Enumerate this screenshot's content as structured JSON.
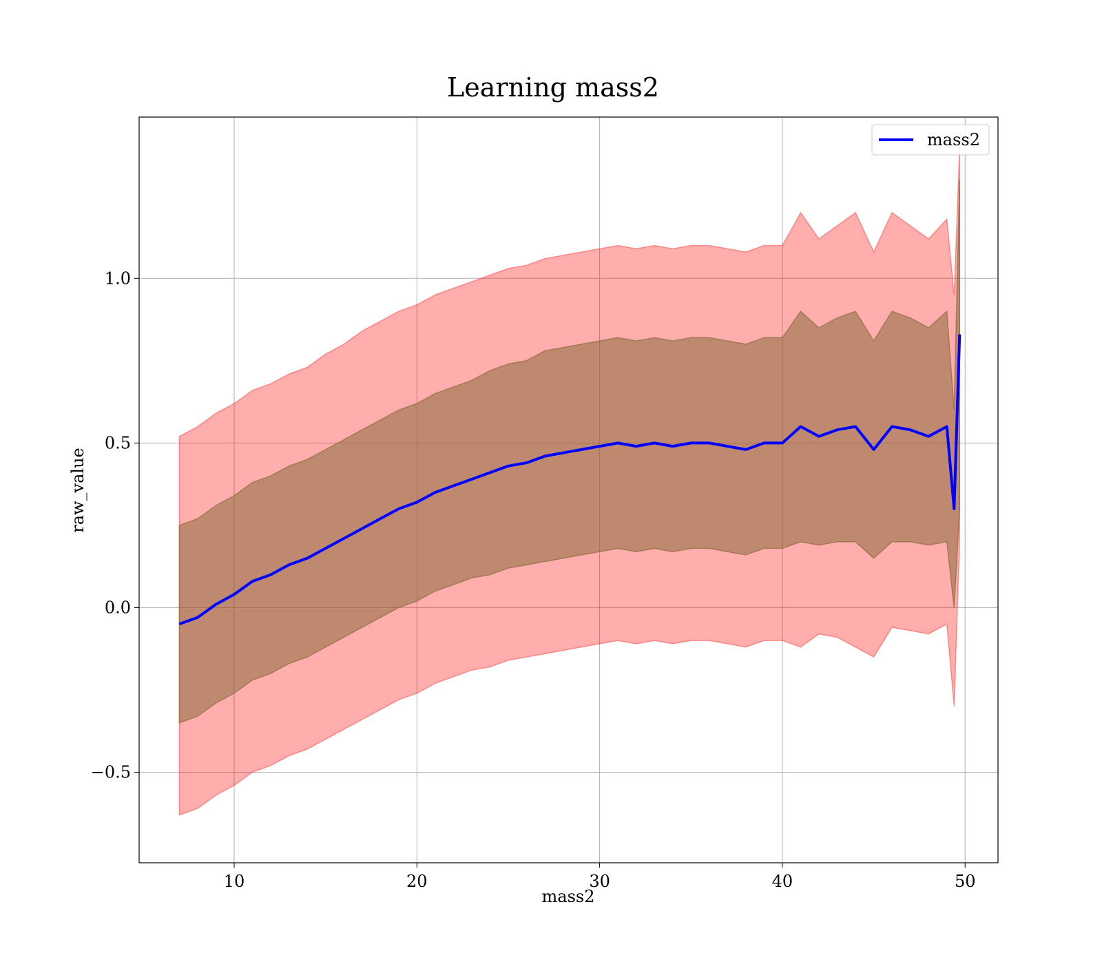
{
  "chart_data": {
    "type": "line",
    "title": "Learning mass2",
    "xlabel": "mass2",
    "ylabel": "raw_value",
    "xlim": [
      4.8,
      51.8
    ],
    "ylim": [
      -0.775,
      1.49
    ],
    "x_ticks": [
      10,
      20,
      30,
      40,
      50
    ],
    "x_tick_labels": [
      "10",
      "20",
      "30",
      "40",
      "50"
    ],
    "y_ticks": [
      -0.5,
      0.0,
      0.5,
      1.0
    ],
    "y_tick_labels": [
      "−0.5",
      "0.0",
      "0.5",
      "1.0"
    ],
    "grid": true,
    "legend": {
      "position": "top-right",
      "entries": [
        "mass2"
      ]
    },
    "colors": {
      "line": "#0000ff",
      "outer_band": "#ff0000",
      "inner_band": "#8b6b3d"
    },
    "series": [
      {
        "name": "mass2",
        "role": "mean",
        "x": [
          7.0,
          8.0,
          9.0,
          10.0,
          11.0,
          12.0,
          13.0,
          14.0,
          15.0,
          16.0,
          17.0,
          18.0,
          19.0,
          20.0,
          21.0,
          22.0,
          23.0,
          24.0,
          25.0,
          26.0,
          27.0,
          28.0,
          29.0,
          30.0,
          31.0,
          32.0,
          33.0,
          34.0,
          35.0,
          36.0,
          37.0,
          38.0,
          39.0,
          40.0,
          41.0,
          42.0,
          43.0,
          44.0,
          45.0,
          46.0,
          47.0,
          48.0,
          49.0,
          49.4,
          49.7
        ],
        "y": [
          -0.05,
          -0.03,
          0.01,
          0.04,
          0.08,
          0.1,
          0.13,
          0.15,
          0.18,
          0.21,
          0.24,
          0.27,
          0.3,
          0.32,
          0.35,
          0.37,
          0.39,
          0.41,
          0.43,
          0.44,
          0.46,
          0.47,
          0.48,
          0.49,
          0.5,
          0.49,
          0.5,
          0.49,
          0.5,
          0.5,
          0.49,
          0.48,
          0.5,
          0.5,
          0.55,
          0.52,
          0.54,
          0.55,
          0.48,
          0.55,
          0.54,
          0.52,
          0.55,
          0.3,
          0.83
        ]
      },
      {
        "name": "",
        "role": "inner_band",
        "x": [
          7.0,
          8.0,
          9.0,
          10.0,
          11.0,
          12.0,
          13.0,
          14.0,
          15.0,
          16.0,
          17.0,
          18.0,
          19.0,
          20.0,
          21.0,
          22.0,
          23.0,
          24.0,
          25.0,
          26.0,
          27.0,
          28.0,
          29.0,
          30.0,
          31.0,
          32.0,
          33.0,
          34.0,
          35.0,
          36.0,
          37.0,
          38.0,
          39.0,
          40.0,
          41.0,
          42.0,
          43.0,
          44.0,
          45.0,
          46.0,
          47.0,
          48.0,
          49.0,
          49.4,
          49.7
        ],
        "lower": [
          -0.35,
          -0.33,
          -0.29,
          -0.26,
          -0.22,
          -0.2,
          -0.17,
          -0.15,
          -0.12,
          -0.09,
          -0.06,
          -0.03,
          0.0,
          0.02,
          0.05,
          0.07,
          0.09,
          0.1,
          0.12,
          0.13,
          0.14,
          0.15,
          0.16,
          0.17,
          0.18,
          0.17,
          0.18,
          0.17,
          0.18,
          0.18,
          0.17,
          0.16,
          0.18,
          0.18,
          0.2,
          0.19,
          0.2,
          0.2,
          0.15,
          0.2,
          0.2,
          0.19,
          0.2,
          0.0,
          0.3
        ],
        "upper": [
          0.25,
          0.27,
          0.31,
          0.34,
          0.38,
          0.4,
          0.43,
          0.45,
          0.48,
          0.51,
          0.54,
          0.57,
          0.6,
          0.62,
          0.65,
          0.67,
          0.69,
          0.72,
          0.74,
          0.75,
          0.78,
          0.79,
          0.8,
          0.81,
          0.82,
          0.81,
          0.82,
          0.81,
          0.82,
          0.82,
          0.81,
          0.8,
          0.82,
          0.82,
          0.9,
          0.85,
          0.88,
          0.9,
          0.81,
          0.9,
          0.88,
          0.85,
          0.9,
          0.6,
          1.3
        ]
      },
      {
        "name": "",
        "role": "outer_band",
        "x": [
          7.0,
          8.0,
          9.0,
          10.0,
          11.0,
          12.0,
          13.0,
          14.0,
          15.0,
          16.0,
          17.0,
          18.0,
          19.0,
          20.0,
          21.0,
          22.0,
          23.0,
          24.0,
          25.0,
          26.0,
          27.0,
          28.0,
          29.0,
          30.0,
          31.0,
          32.0,
          33.0,
          34.0,
          35.0,
          36.0,
          37.0,
          38.0,
          39.0,
          40.0,
          41.0,
          42.0,
          43.0,
          44.0,
          45.0,
          46.0,
          47.0,
          48.0,
          49.0,
          49.4,
          49.7
        ],
        "lower": [
          -0.63,
          -0.61,
          -0.57,
          -0.54,
          -0.5,
          -0.48,
          -0.45,
          -0.43,
          -0.4,
          -0.37,
          -0.34,
          -0.31,
          -0.28,
          -0.26,
          -0.23,
          -0.21,
          -0.19,
          -0.18,
          -0.16,
          -0.15,
          -0.14,
          -0.13,
          -0.12,
          -0.11,
          -0.1,
          -0.11,
          -0.1,
          -0.11,
          -0.1,
          -0.1,
          -0.11,
          -0.12,
          -0.1,
          -0.1,
          -0.12,
          -0.08,
          -0.09,
          -0.12,
          -0.15,
          -0.06,
          -0.07,
          -0.08,
          -0.05,
          -0.3,
          0.2
        ],
        "upper": [
          0.52,
          0.55,
          0.59,
          0.62,
          0.66,
          0.68,
          0.71,
          0.73,
          0.77,
          0.8,
          0.84,
          0.87,
          0.9,
          0.92,
          0.95,
          0.97,
          0.99,
          1.01,
          1.03,
          1.04,
          1.06,
          1.07,
          1.08,
          1.09,
          1.1,
          1.09,
          1.1,
          1.09,
          1.1,
          1.1,
          1.09,
          1.08,
          1.1,
          1.1,
          1.2,
          1.12,
          1.16,
          1.2,
          1.08,
          1.2,
          1.16,
          1.12,
          1.18,
          0.95,
          1.4
        ]
      }
    ]
  }
}
